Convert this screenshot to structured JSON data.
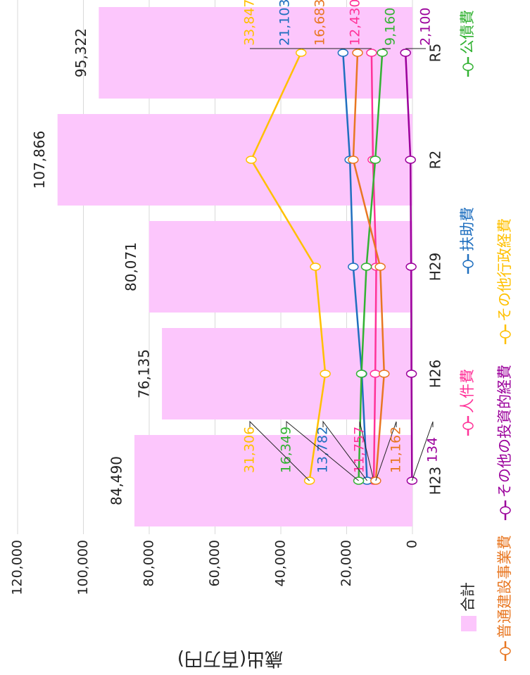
{
  "chart_data": {
    "type": "bar+line",
    "y_label": "歳出(百万円)",
    "categories": [
      "H23",
      "H26",
      "H29",
      "R2",
      "R5"
    ],
    "bar": {
      "name": "合計",
      "color": "#fcc6fc",
      "values": [
        84490,
        76135,
        80071,
        107866,
        95322
      ],
      "value_labels": [
        "84,490",
        "76,135",
        "80,071",
        "107,866",
        "95,322"
      ]
    },
    "series": [
      {
        "name": "人件費",
        "color": "#ff3399",
        "values": [
          11757,
          11300,
          11000,
          12000,
          12430
        ],
        "value_labels": [
          "11,757",
          null,
          null,
          null,
          "12,430"
        ]
      },
      {
        "name": "扶助費",
        "color": "#1f6fbf",
        "values": [
          13782,
          15400,
          18000,
          19000,
          21103
        ],
        "value_labels": [
          "13,782",
          null,
          null,
          null,
          "21,103"
        ]
      },
      {
        "name": "公債費",
        "color": "#33b233",
        "values": [
          16349,
          15500,
          14000,
          11300,
          9160
        ],
        "value_labels": [
          "16,349",
          null,
          null,
          null,
          "9,160"
        ]
      },
      {
        "name": "普通建設事業費",
        "color": "#e87722",
        "values": [
          11162,
          8600,
          9800,
          18000,
          16683
        ],
        "value_labels": [
          "11,162",
          null,
          null,
          null,
          "16,683"
        ]
      },
      {
        "name": "その他の投資的経費",
        "color": "#9b009b",
        "values": [
          134,
          300,
          400,
          600,
          2100
        ],
        "value_labels": [
          "134",
          null,
          null,
          null,
          "2,100"
        ]
      },
      {
        "name": "その他行政経費",
        "color": "#ffc000",
        "values": [
          31306,
          26500,
          29500,
          49000,
          33847
        ],
        "value_labels": [
          "31,306",
          null,
          null,
          null,
          "33,847"
        ]
      }
    ],
    "ylim": [
      0,
      120000
    ],
    "yticks": [
      0,
      {
        "value": 20000,
        "label": "20,000"
      },
      {
        "value": 40000,
        "label": "40,000"
      },
      {
        "value": 60000,
        "label": "60,000"
      },
      {
        "value": 80000,
        "label": "80,000"
      },
      {
        "value": 100000,
        "label": "100,000"
      },
      {
        "value": 120000,
        "label": "120,000"
      }
    ],
    "grid": true
  }
}
